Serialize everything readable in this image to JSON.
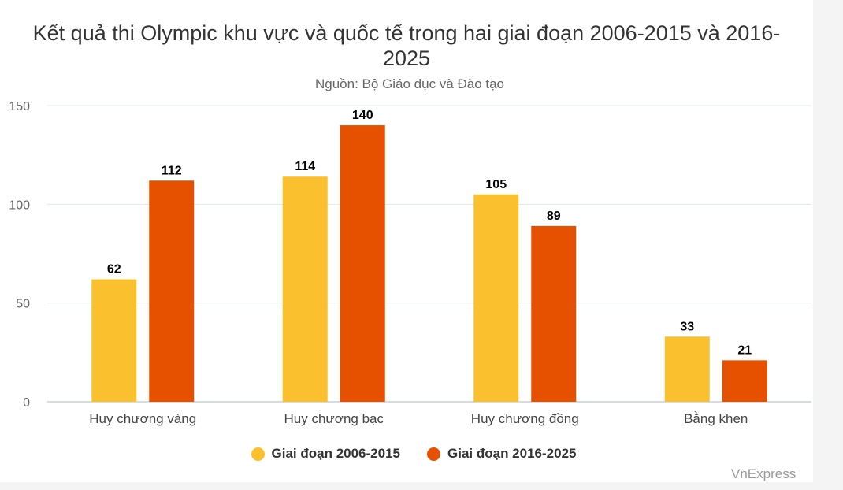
{
  "chart_data": {
    "type": "bar",
    "title": "Kết quả thi Olympic khu vực và quốc tế trong hai giai đoạn 2006-2015 và 2016-2025",
    "subtitle": "Nguồn: Bộ Giáo dục và Đào tạo",
    "categories": [
      "Huy chương vàng",
      "Huy chương bạc",
      "Huy chương đồng",
      "Bằng khen"
    ],
    "series": [
      {
        "name": "Giai đoạn 2006-2015",
        "values": [
          62,
          114,
          105,
          33
        ],
        "color": "#fbc02d"
      },
      {
        "name": "Giai đoạn 2016-2025",
        "values": [
          112,
          140,
          89,
          21
        ],
        "color": "#e65100"
      }
    ],
    "ylim": [
      0,
      150
    ],
    "yticks": [
      0,
      50,
      100,
      150
    ],
    "xlabel": "",
    "ylabel": "",
    "grid": true,
    "legend_position": "bottom",
    "data_labels": true
  },
  "credit": "VnExpress"
}
